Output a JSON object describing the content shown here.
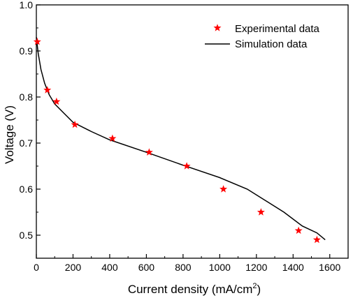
{
  "chart_data": {
    "type": "line",
    "xlabel": "Current density (mA/cm",
    "xlabel_sup": "2",
    "xlabel_end": ")",
    "ylabel": "Voltage (V)",
    "xlim": [
      0,
      1700
    ],
    "ylim": [
      0.45,
      1.0
    ],
    "xticks": [
      0,
      200,
      400,
      600,
      800,
      1000,
      1200,
      1400,
      1600
    ],
    "yticks": [
      0.5,
      0.6,
      0.7,
      0.8,
      0.9,
      1.0
    ],
    "ytick_labels": [
      "0.5",
      "0.6",
      "0.7",
      "0.8",
      "0.9",
      "1.0"
    ],
    "grid": false,
    "legend_position": "top-right",
    "series": [
      {
        "name": "Experimental data",
        "kind": "scatter",
        "marker": "star",
        "color": "#ff0000",
        "x": [
          5,
          60,
          110,
          210,
          415,
          615,
          820,
          1020,
          1225,
          1430,
          1530
        ],
        "y": [
          0.92,
          0.815,
          0.79,
          0.74,
          0.71,
          0.68,
          0.65,
          0.6,
          0.55,
          0.51,
          0.49
        ]
      },
      {
        "name": "Simulation data",
        "kind": "line",
        "color": "#000000",
        "x": [
          0,
          10,
          25,
          45,
          70,
          100,
          150,
          200,
          300,
          400,
          600,
          800,
          1000,
          1150,
          1250,
          1350,
          1450,
          1530,
          1575
        ],
        "y": [
          0.93,
          0.895,
          0.86,
          0.83,
          0.805,
          0.785,
          0.765,
          0.745,
          0.725,
          0.707,
          0.68,
          0.652,
          0.625,
          0.6,
          0.575,
          0.55,
          0.52,
          0.505,
          0.49
        ]
      }
    ]
  }
}
